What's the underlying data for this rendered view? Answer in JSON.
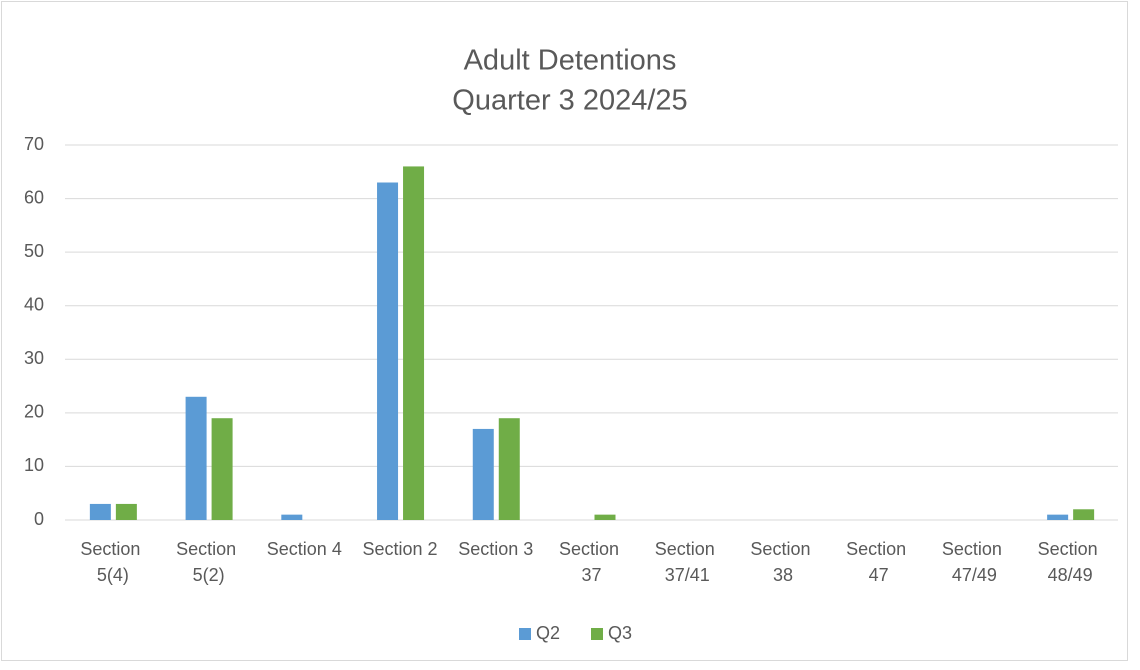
{
  "chart_data": {
    "type": "bar",
    "title": [
      "Adult Detentions",
      "Quarter 3 2024/25"
    ],
    "categories": [
      "Section 5(4)",
      "Section 5(2)",
      "Section 4",
      "Section 2",
      "Section 3",
      "Section 37",
      "Section 37/41",
      "Section 38",
      "Section 47",
      "Section 47/49",
      "Section 48/49"
    ],
    "series": [
      {
        "name": "Q2",
        "color": "#5b9bd5",
        "values": [
          3,
          23,
          1,
          63,
          17,
          0,
          0,
          0,
          0,
          0,
          1
        ]
      },
      {
        "name": "Q3",
        "color": "#70ad47",
        "values": [
          3,
          19,
          0,
          66,
          19,
          1,
          0,
          0,
          0,
          0,
          2
        ]
      }
    ],
    "ylim": [
      0,
      70
    ],
    "yticks": [
      0,
      10,
      20,
      30,
      40,
      50,
      60,
      70
    ],
    "grid": true,
    "legend": "bottom"
  }
}
